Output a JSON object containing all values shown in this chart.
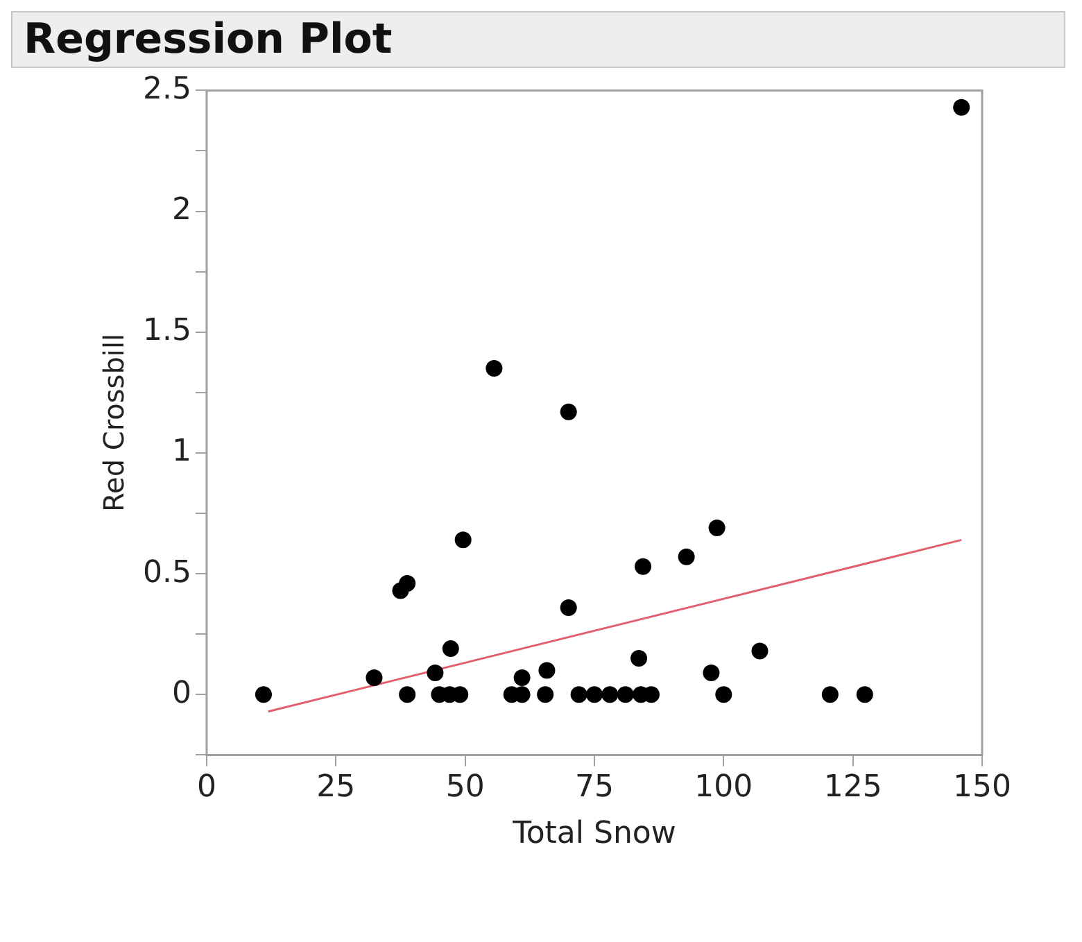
{
  "chart_data": {
    "type": "scatter",
    "title": "Regression Plot",
    "xlabel": "Total Snow",
    "ylabel": "Red Crossbill",
    "xlim": [
      0,
      150
    ],
    "xticks": [
      0,
      25,
      50,
      75,
      100,
      125,
      150
    ],
    "ylim": [
      -0.25,
      2.5
    ],
    "yticks": [
      {
        "value": -0.25,
        "label": null
      },
      0,
      {
        "value": 0.25,
        "label": null
      },
      0.5,
      {
        "value": 0.75,
        "label": null
      },
      1,
      {
        "value": 1.25,
        "label": null
      },
      1.5,
      {
        "value": 1.75,
        "label": null
      },
      2,
      {
        "value": 2.25,
        "label": null
      },
      2.5
    ],
    "grid": false,
    "legend": false,
    "marker": "circle",
    "series": [
      {
        "color": "#000000",
        "x": [
          11,
          32.4,
          37.5,
          38.8,
          38.8,
          44.2,
          47.2,
          45,
          47,
          49,
          49.6,
          55.6,
          59,
          61,
          61,
          65.8,
          65.5,
          70,
          70,
          72,
          75,
          78,
          81,
          84,
          86,
          83.6,
          84.4,
          92.8,
          98.7,
          97.6,
          100,
          107,
          120.6,
          127.3,
          146
        ],
        "values": [
          0,
          0.07,
          0.43,
          0.46,
          0,
          0.09,
          0.19,
          0,
          0,
          0,
          0.64,
          1.35,
          0,
          0,
          0.07,
          0.1,
          0,
          1.17,
          0.36,
          0,
          0,
          0,
          0,
          0,
          0,
          0.15,
          0.53,
          0.57,
          0.69,
          0.09,
          0,
          0.18,
          0,
          0,
          2.43
        ]
      },
      {
        "type": "line",
        "color": "#e06070",
        "marker": "none",
        "line_style": "solid",
        "x": [
          11.9,
          146
        ],
        "values": [
          -0.07,
          0.64
        ]
      }
    ]
  }
}
